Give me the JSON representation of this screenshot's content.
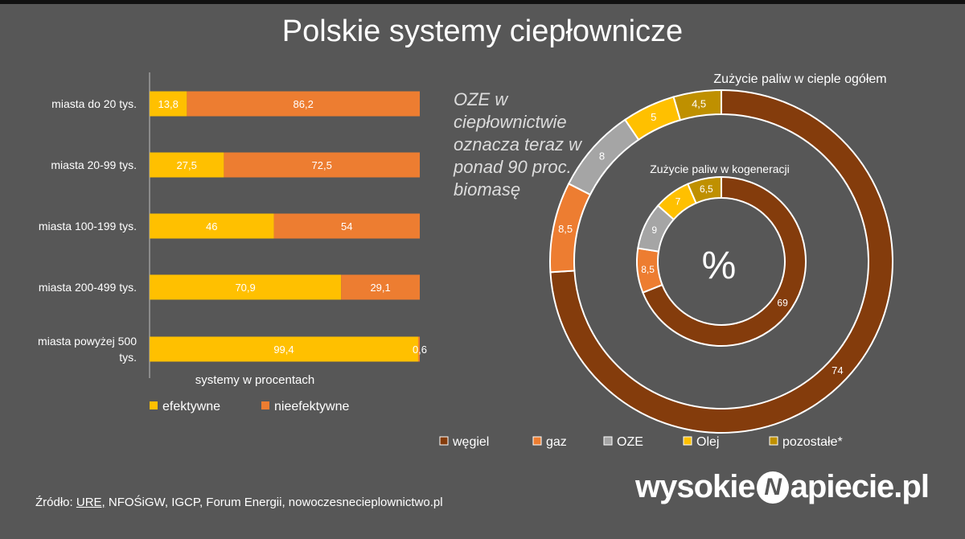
{
  "title": "Polskie systemy ciepłownicze",
  "note": "OZE w ciepłownictwie oznacza teraz w ponad 90 proc. biomasę",
  "source": {
    "prefix": "Źródło: ",
    "underlined": "URE,",
    "rest": " NFOŚiGW, IGCP, Forum Energii, nowoczesnecieplownictwo.pl"
  },
  "logo": {
    "left": "wysokie",
    "mark": "N",
    "right": "apiecie.pl"
  },
  "colors": {
    "background": "#575757",
    "efektywne": "#FFC000",
    "nieefektywne": "#ED7D31",
    "wegiel": "#843C0C",
    "gaz": "#ED7D31",
    "oze": "#A5A5A5",
    "olej": "#FFC000",
    "pozostale": "#BF9000"
  },
  "chart_data": [
    {
      "type": "bar",
      "orientation": "horizontal",
      "stacked": true,
      "categories": [
        "miasta do 20 tys.",
        "miasta 20-99 tys.",
        "miasta 100-199 tys.",
        "miasta 200-499 tys.",
        "miasta powyżej 500 tys."
      ],
      "series": [
        {
          "name": "efektywne",
          "values": [
            13.8,
            27.5,
            46,
            70.9,
            99.4
          ],
          "labels": [
            "13,8",
            "27,5",
            "46",
            "70,9",
            "99,4"
          ]
        },
        {
          "name": "nieefektywne",
          "values": [
            86.2,
            72.5,
            54,
            29.1,
            0.6
          ],
          "labels": [
            "86,2",
            "72,5",
            "54",
            "29,1",
            "0,6"
          ]
        }
      ],
      "xlabel": "systemy w procentach",
      "xlim": [
        0,
        100
      ],
      "grid": false,
      "legend": "bottom"
    },
    {
      "type": "pie",
      "variant": "donut",
      "title": "Zużycie paliw w cieple ogółem",
      "categories": [
        "węgiel",
        "gaz",
        "OZE",
        "Olej",
        "pozostałe*"
      ],
      "values": [
        74,
        8.5,
        8,
        5,
        4.5
      ],
      "labels": [
        "74",
        "8,5",
        "8",
        "5",
        "4,5"
      ],
      "legend": "bottom"
    },
    {
      "type": "pie",
      "variant": "donut",
      "title": "Zużycie paliw w kogeneracji",
      "center_label": "%",
      "categories": [
        "węgiel",
        "gaz",
        "OZE",
        "Olej",
        "pozostałe*"
      ],
      "values": [
        69,
        8.5,
        9,
        7,
        6.5
      ],
      "labels": [
        "69",
        "8,5",
        "9",
        "7",
        "6,5"
      ]
    }
  ]
}
